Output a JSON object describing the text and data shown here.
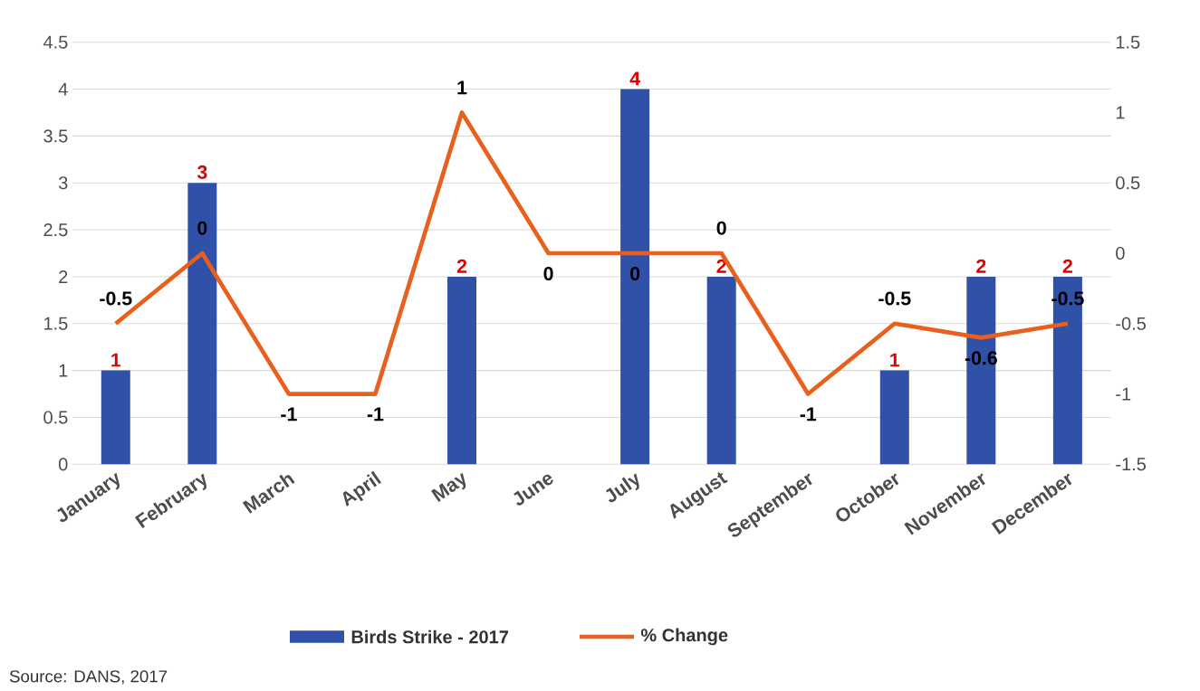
{
  "chart_data": {
    "type": "bar",
    "categories": [
      "January",
      "February",
      "March",
      "April",
      "May",
      "June",
      "July",
      "August",
      "September",
      "October",
      "November",
      "December"
    ],
    "series": [
      {
        "name": "Birds Strike - 2017",
        "color": "#2f52a8",
        "values": [
          1,
          3,
          0,
          0,
          2,
          0,
          4,
          2,
          0,
          1,
          2,
          2
        ],
        "value_labels": [
          "1",
          "3",
          null,
          null,
          "2",
          null,
          "4",
          "2",
          null,
          "1",
          "2",
          "2"
        ]
      },
      {
        "name": "% Change",
        "type": "line",
        "axis": "y2",
        "color": "#e8601c",
        "values": [
          -0.5,
          0,
          -1,
          -1,
          1,
          0,
          0,
          0,
          -1,
          -0.5,
          -0.6,
          -0.5
        ],
        "value_labels": [
          "-0.5",
          "0",
          "-1",
          "-1",
          "1",
          "0",
          "0",
          "0",
          "-1",
          "-0.5",
          "-0.6",
          "-0.5"
        ]
      }
    ],
    "ylim": [
      0,
      4.5
    ],
    "yticks": [
      0,
      0.5,
      1,
      1.5,
      2,
      2.5,
      3,
      3.5,
      4,
      4.5
    ],
    "y2lim": [
      -1.5,
      1.5
    ],
    "y2ticks": [
      -1.5,
      -1,
      -0.5,
      0,
      0.5,
      1,
      1.5
    ],
    "grid": "y",
    "legend": "bottom",
    "annotations": [
      "Source: DANS, 2017"
    ]
  }
}
